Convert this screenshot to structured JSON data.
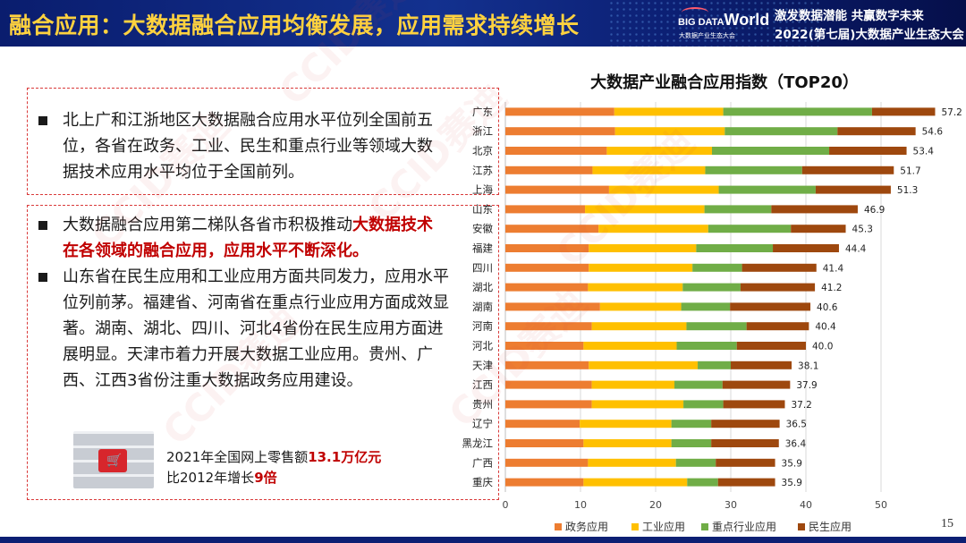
{
  "header": {
    "title": "融合应用：大数据融合应用均衡发展，应用需求持续增长",
    "logo_main_prefix": "BIG DATA",
    "logo_main_suffix": "World",
    "logo_subtitle": "大数据产业生态大会",
    "slogan": "激发数据潜能 共赢数字未来",
    "conference": "2022(第七届)大数据产业生态大会"
  },
  "text_panel": {
    "paragraph1": "北上广和江浙地区大数据融合应用水平位列全国前五位，各省在政务、工业、民生和重点行业等领域大数据技术应用水平均位于全国前列。",
    "paragraph2_plain": "大数据融合应用第二梯队各省市积极推动",
    "paragraph2_highlight": "大数据技术在各领域的融合应用，应用水平不断深化。",
    "paragraph3": "山东省在民生应用和工业应用方面共同发力，应用水平位列前茅。福建省、河南省在重点行业应用方面成效显著。湖南、湖北、四川、河北4省份在民生应用方面进展明显。天津市着力开展大数据工业应用。贵州、广西、江西3省份注重大数据政务应用建设。"
  },
  "stats": {
    "line1_prefix": "2021年全国网上零售额",
    "line1_value": "13.1万亿元",
    "line2_prefix": "比2012年增长",
    "line2_value": "9倍"
  },
  "watermark_text": "CCID赛迪",
  "page_number": "15",
  "colors": {
    "header_bg": "#13318f",
    "title_yellow": "#ffd23f",
    "highlight_red": "#c00000",
    "dashed_border": "#d93a3a"
  },
  "chart_data": {
    "type": "bar",
    "orientation": "horizontal",
    "stacked": true,
    "title": "大数据产业融合应用指数（TOP20）",
    "categories": [
      "广东",
      "浙江",
      "北京",
      "江苏",
      "上海",
      "山东",
      "安徽",
      "福建",
      "四川",
      "湖北",
      "湖南",
      "河南",
      "河北",
      "天津",
      "江西",
      "贵州",
      "辽宁",
      "黑龙江",
      "广西",
      "重庆"
    ],
    "series": [
      {
        "name": "政务应用",
        "color": "#ed7d31",
        "values": [
          14.5,
          14.6,
          13.5,
          11.6,
          13.8,
          10.6,
          12.4,
          11.1,
          11.1,
          11.0,
          12.6,
          11.5,
          10.4,
          11.1,
          11.5,
          11.5,
          9.9,
          10.4,
          11.0,
          10.4
        ]
      },
      {
        "name": "工业应用",
        "color": "#ffc000",
        "values": [
          14.5,
          14.6,
          14.0,
          15.0,
          14.6,
          15.9,
          14.6,
          14.3,
          13.8,
          12.6,
          10.8,
          12.6,
          12.4,
          14.5,
          11.0,
          12.2,
          12.2,
          11.7,
          11.7,
          13.8
        ]
      },
      {
        "name": "重点行业应用",
        "color": "#70ad47",
        "values": [
          19.8,
          15.0,
          15.6,
          12.9,
          12.9,
          8.9,
          11.0,
          10.2,
          6.6,
          7.7,
          6.5,
          8.0,
          8.0,
          4.4,
          6.4,
          5.3,
          5.3,
          5.3,
          5.3,
          4.1
        ]
      },
      {
        "name": "民生应用",
        "color": "#9e480e",
        "values": [
          8.4,
          10.4,
          10.3,
          12.2,
          10.0,
          11.5,
          7.3,
          8.8,
          9.9,
          9.9,
          10.7,
          8.3,
          9.2,
          8.1,
          9.0,
          8.2,
          9.1,
          9.0,
          7.9,
          7.6
        ]
      }
    ],
    "totals": [
      "57.2",
      "54.6",
      "53.4",
      "51.7",
      "51.3",
      "46.9",
      "45.3",
      "44.4",
      "41.4",
      "41.2",
      "40.6",
      "40.4",
      "40.0",
      "38.1",
      "37.9",
      "37.2",
      "36.5",
      "36.4",
      "35.9",
      "35.9"
    ],
    "xlim": [
      0,
      60
    ],
    "xticks": [
      "0",
      "10",
      "20",
      "30",
      "40",
      "50"
    ],
    "grid": true,
    "legend_position": "bottom"
  }
}
